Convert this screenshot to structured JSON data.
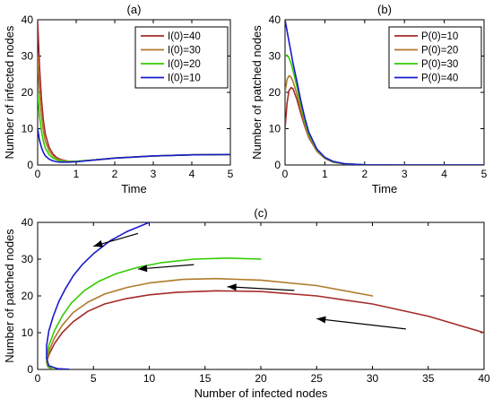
{
  "chart_data": [
    {
      "panel": "(a)",
      "type": "line",
      "title": "(a)",
      "xlabel": "Time",
      "ylabel": "Number of infected nodes",
      "xlim": [
        0,
        5
      ],
      "ylim": [
        0,
        40
      ],
      "xticks": [
        0,
        1,
        2,
        3,
        4,
        5
      ],
      "yticks": [
        0,
        10,
        20,
        30,
        40
      ],
      "legend_position": "top-right",
      "series": [
        {
          "name": "I(0)=40",
          "color": "#a52a2a",
          "x": [
            0,
            0.05,
            0.1,
            0.15,
            0.2,
            0.3,
            0.4,
            0.5,
            0.6,
            0.8,
            1.0,
            1.5,
            2.0,
            3.0,
            4.0,
            5.0
          ],
          "y": [
            40,
            27,
            18,
            12,
            8.5,
            4.8,
            3.0,
            2.0,
            1.5,
            1.0,
            1.0,
            1.4,
            1.9,
            2.5,
            2.8,
            2.9
          ]
        },
        {
          "name": "I(0)=30",
          "color": "#b07a2a",
          "x": [
            0,
            0.05,
            0.1,
            0.15,
            0.2,
            0.3,
            0.4,
            0.5,
            0.6,
            0.8,
            1.0,
            1.5,
            2.0,
            3.0,
            4.0,
            5.0
          ],
          "y": [
            30,
            20,
            13.5,
            9.2,
            6.5,
            3.8,
            2.5,
            1.7,
            1.3,
            1.0,
            1.0,
            1.4,
            1.9,
            2.5,
            2.8,
            2.9
          ]
        },
        {
          "name": "I(0)=20",
          "color": "#33cc00",
          "x": [
            0,
            0.05,
            0.1,
            0.15,
            0.2,
            0.3,
            0.4,
            0.5,
            0.6,
            0.8,
            1.0,
            1.5,
            2.0,
            3.0,
            4.0,
            5.0
          ],
          "y": [
            20,
            13.5,
            9.2,
            6.4,
            4.6,
            2.8,
            1.9,
            1.4,
            1.1,
            0.9,
            1.0,
            1.4,
            1.9,
            2.5,
            2.8,
            2.9
          ]
        },
        {
          "name": "I(0)=10",
          "color": "#1a1acc",
          "x": [
            0,
            0.05,
            0.1,
            0.15,
            0.2,
            0.3,
            0.4,
            0.5,
            0.6,
            0.8,
            1.0,
            1.5,
            2.0,
            3.0,
            4.0,
            5.0
          ],
          "y": [
            10,
            6.8,
            4.8,
            3.4,
            2.5,
            1.6,
            1.1,
            0.9,
            0.8,
            0.8,
            0.9,
            1.4,
            1.9,
            2.5,
            2.8,
            2.9
          ]
        }
      ]
    },
    {
      "panel": "(b)",
      "type": "line",
      "title": "(b)",
      "xlabel": "Time",
      "ylabel": "Number of patched nodes",
      "xlim": [
        0,
        5
      ],
      "ylim": [
        0,
        40
      ],
      "xticks": [
        0,
        1,
        2,
        3,
        4,
        5
      ],
      "yticks": [
        0,
        10,
        20,
        30,
        40
      ],
      "legend_position": "top-right",
      "series": [
        {
          "name": "P(0)=10",
          "color": "#a52a2a",
          "x": [
            0,
            0.05,
            0.1,
            0.15,
            0.2,
            0.3,
            0.4,
            0.5,
            0.6,
            0.8,
            1.0,
            1.2,
            1.5,
            2.0,
            3.0,
            5.0
          ],
          "y": [
            10,
            17,
            20.5,
            21.3,
            21.0,
            18.0,
            14.0,
            10.5,
            7.5,
            3.8,
            1.8,
            0.8,
            0.3,
            0.05,
            0,
            0
          ]
        },
        {
          "name": "P(0)=20",
          "color": "#b07a2a",
          "x": [
            0,
            0.05,
            0.1,
            0.15,
            0.2,
            0.3,
            0.4,
            0.5,
            0.6,
            0.8,
            1.0,
            1.2,
            1.5,
            2.0,
            3.0,
            5.0
          ],
          "y": [
            20,
            23.5,
            24.6,
            24.2,
            23.0,
            19.5,
            15.0,
            11.0,
            7.8,
            3.9,
            1.9,
            0.9,
            0.3,
            0.05,
            0,
            0
          ]
        },
        {
          "name": "P(0)=30",
          "color": "#33cc00",
          "x": [
            0,
            0.05,
            0.1,
            0.15,
            0.2,
            0.3,
            0.4,
            0.5,
            0.6,
            0.8,
            1.0,
            1.2,
            1.5,
            2.0,
            3.0,
            5.0
          ],
          "y": [
            30,
            30.3,
            29.5,
            28.0,
            26.0,
            21.5,
            16.5,
            12.0,
            8.5,
            4.2,
            2.0,
            0.9,
            0.3,
            0.05,
            0,
            0
          ]
        },
        {
          "name": "P(0)=40",
          "color": "#1a1acc",
          "x": [
            0,
            0.05,
            0.1,
            0.15,
            0.2,
            0.3,
            0.4,
            0.5,
            0.6,
            0.8,
            1.0,
            1.2,
            1.5,
            2.0,
            3.0,
            5.0
          ],
          "y": [
            40,
            37.0,
            34.0,
            31.0,
            28.0,
            23.0,
            17.5,
            12.8,
            9.0,
            4.4,
            2.1,
            1.0,
            0.35,
            0.05,
            0,
            0
          ]
        }
      ]
    },
    {
      "panel": "(c)",
      "type": "line",
      "title": "(c)",
      "xlabel": "Number of infected nodes",
      "ylabel": "Number of patched nodes",
      "xlim": [
        0,
        40
      ],
      "ylim": [
        0,
        40
      ],
      "xticks": [
        0,
        5,
        10,
        15,
        20,
        25,
        30,
        35,
        40
      ],
      "yticks": [
        0,
        10,
        20,
        30,
        40
      ],
      "series": [
        {
          "color": "#a52a2a",
          "x": [
            40,
            35,
            30,
            25,
            20,
            16,
            12.5,
            10,
            8,
            6,
            4.5,
            3.2,
            2.2,
            1.5,
            1.0,
            0.8,
            0.9,
            1.2
          ],
          "y": [
            10,
            14.5,
            17.8,
            20.0,
            21.2,
            21.4,
            21.0,
            20.3,
            19.3,
            17.8,
            15.8,
            13.0,
            10.0,
            7.0,
            4.0,
            2.0,
            0.8,
            0.2
          ]
        },
        {
          "color": "#b07a2a",
          "x": [
            30,
            25,
            20,
            16,
            13,
            10,
            8,
            6,
            4.5,
            3.2,
            2.2,
            1.5,
            1.0,
            0.8,
            0.9,
            1.2
          ],
          "y": [
            20,
            22.8,
            24.3,
            24.7,
            24.5,
            23.5,
            22.3,
            20.5,
            18.3,
            15.5,
            12.0,
            8.5,
            5.0,
            2.5,
            0.9,
            0.2
          ]
        },
        {
          "color": "#33cc00",
          "x": [
            20,
            17,
            14,
            11,
            9,
            7,
            5.5,
            4.2,
            3.0,
            2.2,
            1.5,
            1.0,
            0.8,
            0.9,
            1.3
          ],
          "y": [
            30,
            30.3,
            30.0,
            29.0,
            27.8,
            26.0,
            24.0,
            21.5,
            18.0,
            14.5,
            10.5,
            6.5,
            3.2,
            1.0,
            0.2
          ]
        },
        {
          "color": "#1a1acc",
          "x": [
            10,
            8,
            6.5,
            5,
            4,
            3.2,
            2.5,
            1.9,
            1.4,
            1.0,
            0.8,
            0.8,
            1.0,
            1.8,
            2.8
          ],
          "y": [
            40,
            37.5,
            35.0,
            31.5,
            28.5,
            25.5,
            22.0,
            18.5,
            14.5,
            10.5,
            6.5,
            3.0,
            1.0,
            0.2,
            0.05
          ]
        }
      ],
      "arrows": [
        {
          "from": [
            9.0,
            37.0
          ],
          "to": [
            5.0,
            33.5
          ]
        },
        {
          "from": [
            14.0,
            28.5
          ],
          "to": [
            9.0,
            27.3
          ]
        },
        {
          "from": [
            23.0,
            21.5
          ],
          "to": [
            17.0,
            22.5
          ]
        },
        {
          "from": [
            33.0,
            11.0
          ],
          "to": [
            25.0,
            13.8
          ]
        }
      ]
    }
  ]
}
